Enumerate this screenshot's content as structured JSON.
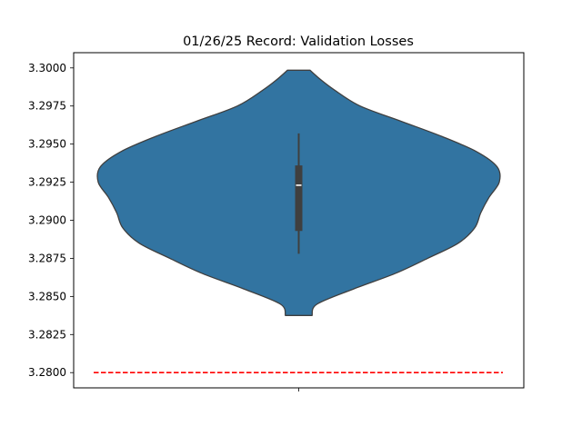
{
  "chart_data": {
    "type": "violin",
    "title": "01/26/25 Record: Validation Losses",
    "xlabel": "",
    "ylabel": "",
    "ylim": [
      3.279,
      3.301
    ],
    "yticks": [
      "3.2800",
      "3.2825",
      "3.2850",
      "3.2875",
      "3.2900",
      "3.2925",
      "3.2950",
      "3.2975",
      "3.3000"
    ],
    "grid": false,
    "violin": {
      "fill_color": "#3274a1",
      "edge_color": "#3f3f3f",
      "profile": [
        {
          "y": 3.28375,
          "half_width": 0.065
        },
        {
          "y": 3.2845,
          "half_width": 0.09
        },
        {
          "y": 3.2855,
          "half_width": 0.27
        },
        {
          "y": 3.2865,
          "half_width": 0.47
        },
        {
          "y": 3.2875,
          "half_width": 0.63
        },
        {
          "y": 3.2885,
          "half_width": 0.78
        },
        {
          "y": 3.2895,
          "half_width": 0.86
        },
        {
          "y": 3.2905,
          "half_width": 0.89
        },
        {
          "y": 3.2915,
          "half_width": 0.93
        },
        {
          "y": 3.2925,
          "half_width": 0.98
        },
        {
          "y": 3.2935,
          "half_width": 0.97
        },
        {
          "y": 3.2945,
          "half_width": 0.87
        },
        {
          "y": 3.2955,
          "half_width": 0.7
        },
        {
          "y": 3.2965,
          "half_width": 0.5
        },
        {
          "y": 3.2975,
          "half_width": 0.3
        },
        {
          "y": 3.2985,
          "half_width": 0.18
        },
        {
          "y": 3.2992,
          "half_width": 0.11
        },
        {
          "y": 3.29985,
          "half_width": 0.055
        }
      ],
      "whisker_low": 3.2878,
      "whisker_high": 3.2957,
      "q1": 3.2893,
      "q3": 3.2936,
      "median": 3.2923,
      "box_color": "#3f3f3f",
      "median_color": "#ffffff"
    },
    "reference_line": {
      "y": 3.28,
      "color": "#ff0000",
      "style": "dashed"
    }
  }
}
